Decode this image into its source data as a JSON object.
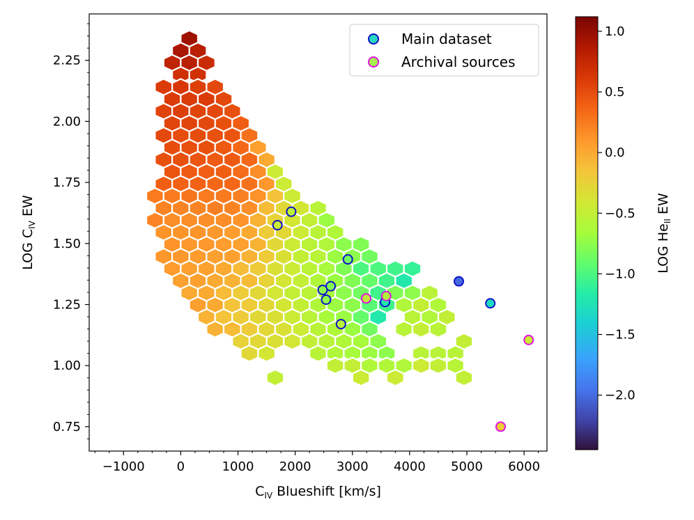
{
  "chart_data": {
    "type": "scatter",
    "title": "",
    "xlabel": {
      "main": "C",
      "sub": "IV",
      "rest": " Blueshift [km/s]"
    },
    "ylabel": {
      "main": "LOG C",
      "sub": "IV",
      "rest": " EW"
    },
    "colorbar_label": {
      "main": "LOG He",
      "sub": "II",
      "rest": " EW"
    },
    "xlim": [
      -1600,
      6400
    ],
    "ylim": [
      0.65,
      2.44
    ],
    "clim": [
      -2.45,
      1.12
    ],
    "xticks": [
      -1000,
      0,
      1000,
      2000,
      3000,
      4000,
      5000,
      6000
    ],
    "xtick_labels": [
      "−1000",
      "0",
      "1000",
      "2000",
      "3000",
      "4000",
      "5000",
      "6000"
    ],
    "yticks": [
      0.75,
      1.0,
      1.25,
      1.5,
      1.75,
      2.0,
      2.25
    ],
    "ytick_labels": [
      "0.75",
      "1.00",
      "1.25",
      "1.50",
      "1.75",
      "2.00",
      "2.25"
    ],
    "cticks": [
      1.0,
      0.5,
      0.0,
      -0.5,
      -1.0,
      -1.5,
      -2.0
    ],
    "ctick_labels": [
      "1.0",
      "0.5",
      "0.0",
      "−0.5",
      "−1.0",
      "−1.5",
      "−2.0"
    ],
    "hex_grid": {
      "x0": 0,
      "y0": 1.0,
      "dx": 300,
      "dy": 0.0496
    },
    "hexbins_rows": [
      {
        "row": 27,
        "cells": [
          [
            1,
            0.95
          ]
        ]
      },
      {
        "row": 26,
        "cells": [
          [
            0,
            0.9
          ],
          [
            2,
            0.82
          ]
        ]
      },
      {
        "row": 25,
        "cells": [
          [
            -1,
            0.78
          ],
          [
            1,
            0.82
          ],
          [
            3,
            0.72
          ]
        ]
      },
      {
        "row": 24,
        "cells": [
          [
            0,
            0.68
          ],
          [
            2,
            0.68
          ]
        ]
      },
      {
        "row": 23,
        "cells": [
          [
            -2,
            0.6
          ],
          [
            0,
            0.62
          ],
          [
            2,
            0.58
          ],
          [
            4,
            0.52
          ]
        ]
      },
      {
        "row": 22,
        "cells": [
          [
            -1,
            0.6
          ],
          [
            1,
            0.6
          ],
          [
            3,
            0.6
          ],
          [
            5,
            0.52
          ]
        ]
      },
      {
        "row": 21,
        "cells": [
          [
            -2,
            0.55
          ],
          [
            0,
            0.58
          ],
          [
            2,
            0.55
          ],
          [
            4,
            0.52
          ],
          [
            6,
            0.48
          ]
        ]
      },
      {
        "row": 20,
        "cells": [
          [
            -1,
            0.55
          ],
          [
            1,
            0.55
          ],
          [
            3,
            0.52
          ],
          [
            5,
            0.48
          ],
          [
            7,
            0.4
          ]
        ]
      },
      {
        "row": 19,
        "cells": [
          [
            -2,
            0.52
          ],
          [
            0,
            0.5
          ],
          [
            2,
            0.5
          ],
          [
            4,
            0.48
          ],
          [
            6,
            0.45
          ],
          [
            8,
            0.3
          ]
        ]
      },
      {
        "row": 18,
        "cells": [
          [
            -1,
            0.5
          ],
          [
            1,
            0.48
          ],
          [
            3,
            0.48
          ],
          [
            5,
            0.42
          ],
          [
            7,
            0.35
          ],
          [
            9,
            0.05
          ]
        ]
      },
      {
        "row": 17,
        "cells": [
          [
            -2,
            0.48
          ],
          [
            0,
            0.48
          ],
          [
            2,
            0.45
          ],
          [
            4,
            0.42
          ],
          [
            6,
            0.42
          ],
          [
            8,
            0.35
          ],
          [
            10,
            0.0
          ]
        ]
      },
      {
        "row": 16,
        "cells": [
          [
            -1,
            0.45
          ],
          [
            1,
            0.42
          ],
          [
            3,
            0.4
          ],
          [
            5,
            0.4
          ],
          [
            7,
            0.32
          ],
          [
            9,
            0.15
          ],
          [
            11,
            -0.45
          ]
        ]
      },
      {
        "row": 15,
        "cells": [
          [
            -2,
            0.4
          ],
          [
            0,
            0.38
          ],
          [
            2,
            0.38
          ],
          [
            4,
            0.35
          ],
          [
            6,
            0.35
          ],
          [
            8,
            0.3
          ],
          [
            10,
            0.1
          ],
          [
            12,
            -0.45
          ]
        ]
      },
      {
        "row": 14,
        "cells": [
          [
            -3,
            0.25
          ],
          [
            -1,
            0.25
          ],
          [
            1,
            0.28
          ],
          [
            3,
            0.25
          ],
          [
            5,
            0.25
          ],
          [
            7,
            0.22
          ],
          [
            9,
            0.12
          ],
          [
            11,
            -0.15
          ],
          [
            13,
            -0.45
          ]
        ]
      },
      {
        "row": 13,
        "cells": [
          [
            -2,
            0.2
          ],
          [
            0,
            0.2
          ],
          [
            2,
            0.2
          ],
          [
            4,
            0.22
          ],
          [
            6,
            0.2
          ],
          [
            8,
            0.15
          ],
          [
            10,
            -0.1
          ],
          [
            12,
            -0.3
          ],
          [
            14,
            -0.4
          ],
          [
            16,
            -0.55
          ]
        ]
      },
      {
        "row": 12,
        "cells": [
          [
            -3,
            0.2
          ],
          [
            -1,
            0.15
          ],
          [
            1,
            0.15
          ],
          [
            3,
            0.15
          ],
          [
            5,
            0.15
          ],
          [
            7,
            0.12
          ],
          [
            9,
            -0.05
          ],
          [
            11,
            -0.25
          ],
          [
            13,
            -0.4
          ],
          [
            15,
            -0.5
          ],
          [
            17,
            -0.7
          ]
        ]
      },
      {
        "row": 11,
        "cells": [
          [
            -2,
            0.12
          ],
          [
            0,
            0.12
          ],
          [
            2,
            0.12
          ],
          [
            4,
            0.1
          ],
          [
            6,
            0.08
          ],
          [
            8,
            0.0
          ],
          [
            10,
            -0.2
          ],
          [
            12,
            -0.3
          ],
          [
            14,
            -0.45
          ],
          [
            16,
            -0.55
          ],
          [
            18,
            -0.6
          ]
        ]
      },
      {
        "row": 10,
        "cells": [
          [
            -1,
            0.12
          ],
          [
            1,
            0.1
          ],
          [
            3,
            0.1
          ],
          [
            5,
            0.08
          ],
          [
            7,
            0.05
          ],
          [
            9,
            -0.05
          ],
          [
            11,
            -0.3
          ],
          [
            13,
            -0.45
          ],
          [
            15,
            -0.55
          ],
          [
            17,
            -0.6
          ],
          [
            19,
            -0.75
          ],
          [
            21,
            -0.8
          ]
        ]
      },
      {
        "row": 9,
        "cells": [
          [
            -2,
            0.1
          ],
          [
            0,
            0.1
          ],
          [
            2,
            0.08
          ],
          [
            4,
            0.05
          ],
          [
            6,
            0.05
          ],
          [
            8,
            -0.05
          ],
          [
            10,
            -0.2
          ],
          [
            12,
            -0.35
          ],
          [
            14,
            -0.5
          ],
          [
            16,
            -0.55
          ],
          [
            18,
            -0.7
          ],
          [
            20,
            -0.75
          ],
          [
            22,
            -0.85
          ]
        ]
      },
      {
        "row": 8,
        "cells": [
          [
            -1,
            0.08
          ],
          [
            1,
            0.05
          ],
          [
            3,
            0.05
          ],
          [
            5,
            0.0
          ],
          [
            7,
            -0.1
          ],
          [
            9,
            -0.2
          ],
          [
            11,
            -0.35
          ],
          [
            13,
            -0.45
          ],
          [
            15,
            -0.55
          ],
          [
            17,
            -0.65
          ],
          [
            19,
            -0.8
          ],
          [
            21,
            -1.0
          ],
          [
            23,
            -1.0
          ],
          [
            25,
            -1.05
          ],
          [
            27,
            -1.1
          ]
        ]
      },
      {
        "row": 7,
        "cells": [
          [
            0,
            0.05
          ],
          [
            2,
            0.05
          ],
          [
            4,
            0.0
          ],
          [
            6,
            -0.05
          ],
          [
            8,
            -0.1
          ],
          [
            10,
            -0.25
          ],
          [
            12,
            -0.4
          ],
          [
            14,
            -0.5
          ],
          [
            16,
            -0.6
          ],
          [
            18,
            -0.7
          ],
          [
            20,
            -0.8
          ],
          [
            22,
            -0.9
          ],
          [
            24,
            -1.05
          ],
          [
            26,
            -1.2
          ]
        ]
      },
      {
        "row": 6,
        "cells": [
          [
            1,
            0.0
          ],
          [
            3,
            0.0
          ],
          [
            5,
            -0.1
          ],
          [
            7,
            -0.2
          ],
          [
            9,
            -0.3
          ],
          [
            11,
            -0.4
          ],
          [
            13,
            -0.5
          ],
          [
            15,
            -0.55
          ],
          [
            17,
            -0.65
          ],
          [
            19,
            -0.75
          ],
          [
            21,
            -0.85
          ],
          [
            23,
            -1.05
          ],
          [
            25,
            -0.8
          ],
          [
            27,
            -0.75
          ],
          [
            29,
            -0.55
          ]
        ]
      },
      {
        "row": 5,
        "cells": [
          [
            2,
            0.05
          ],
          [
            4,
            0.0
          ],
          [
            6,
            -0.15
          ],
          [
            8,
            -0.2
          ],
          [
            10,
            -0.3
          ],
          [
            12,
            -0.4
          ],
          [
            14,
            -0.5
          ],
          [
            16,
            -0.6
          ],
          [
            18,
            -0.7
          ],
          [
            20,
            -0.75
          ],
          [
            22,
            -0.95
          ],
          [
            24,
            -1.05
          ],
          [
            26,
            -0.6
          ],
          [
            28,
            -0.5
          ],
          [
            30,
            -0.6
          ]
        ]
      },
      {
        "row": 4,
        "cells": [
          [
            3,
            -0.05
          ],
          [
            5,
            -0.15
          ],
          [
            7,
            -0.2
          ],
          [
            9,
            -0.3
          ],
          [
            11,
            -0.35
          ],
          [
            13,
            -0.45
          ],
          [
            15,
            -0.55
          ],
          [
            17,
            -0.65
          ],
          [
            19,
            -0.7
          ],
          [
            21,
            -0.9
          ],
          [
            23,
            -1.2
          ],
          [
            27,
            -0.55
          ],
          [
            29,
            -0.6
          ],
          [
            31,
            -0.5
          ]
        ]
      },
      {
        "row": 3,
        "cells": [
          [
            4,
            -0.05
          ],
          [
            6,
            -0.1
          ],
          [
            8,
            -0.2
          ],
          [
            10,
            -0.3
          ],
          [
            12,
            -0.35
          ],
          [
            14,
            -0.45
          ],
          [
            16,
            -0.55
          ],
          [
            18,
            -0.6
          ],
          [
            20,
            -0.7
          ],
          [
            22,
            -0.85
          ],
          [
            26,
            -0.55
          ],
          [
            28,
            -0.5
          ],
          [
            30,
            -0.55
          ]
        ]
      },
      {
        "row": 2,
        "cells": [
          [
            7,
            -0.25
          ],
          [
            9,
            -0.3
          ],
          [
            11,
            -0.35
          ],
          [
            13,
            -0.4
          ],
          [
            15,
            -0.5
          ],
          [
            17,
            -0.55
          ],
          [
            19,
            -0.6
          ],
          [
            21,
            -0.65
          ],
          [
            23,
            -0.75
          ],
          [
            33,
            -0.5
          ]
        ]
      },
      {
        "row": 1,
        "cells": [
          [
            8,
            -0.3
          ],
          [
            10,
            -0.4
          ],
          [
            16,
            -0.55
          ],
          [
            18,
            -0.6
          ],
          [
            20,
            -0.65
          ],
          [
            22,
            -0.7
          ],
          [
            24,
            -0.75
          ],
          [
            28,
            -0.55
          ],
          [
            30,
            -0.55
          ],
          [
            32,
            -0.55
          ]
        ]
      },
      {
        "row": 0,
        "cells": [
          [
            18,
            -0.5
          ],
          [
            20,
            -0.5
          ],
          [
            22,
            -0.6
          ],
          [
            24,
            -0.6
          ],
          [
            26,
            -0.6
          ],
          [
            28,
            -0.45
          ],
          [
            30,
            -0.5
          ],
          [
            32,
            -0.55
          ]
        ]
      },
      {
        "row": -1,
        "cells": [
          [
            11,
            -0.5
          ],
          [
            21,
            -0.45
          ],
          [
            25,
            -0.45
          ],
          [
            33,
            -0.5
          ]
        ]
      }
    ],
    "series": [
      {
        "name": "Main dataset",
        "edgecolor": "#1010c8",
        "points": [
          {
            "x": 1690,
            "y": 1.575,
            "c": -0.45
          },
          {
            "x": 1930,
            "y": 1.63,
            "c": -0.55
          },
          {
            "x": 2920,
            "y": 1.435,
            "c": -0.85
          },
          {
            "x": 2480,
            "y": 1.31,
            "c": -0.75
          },
          {
            "x": 2620,
            "y": 1.325,
            "c": -0.8
          },
          {
            "x": 2540,
            "y": 1.27,
            "c": -0.75
          },
          {
            "x": 2800,
            "y": 1.17,
            "c": -0.55
          },
          {
            "x": 3570,
            "y": 1.26,
            "c": -1.2
          },
          {
            "x": 4860,
            "y": 1.345,
            "c": -2.0
          },
          {
            "x": 5410,
            "y": 1.255,
            "c": -1.3
          }
        ]
      },
      {
        "name": "Archival sources",
        "edgecolor": "#e010e0",
        "points": [
          {
            "x": 3240,
            "y": 1.275,
            "c": -0.5
          },
          {
            "x": 3590,
            "y": 1.285,
            "c": -0.6
          },
          {
            "x": 5590,
            "y": 0.75,
            "c": -0.2
          },
          {
            "x": 6080,
            "y": 1.105,
            "c": -0.45
          }
        ]
      }
    ],
    "legend": {
      "position": "top-right",
      "entries": [
        {
          "label": "Main dataset",
          "face": "#2ad6c0",
          "edge": "#1010c8"
        },
        {
          "label": "Archival sources",
          "face": "#a8f050",
          "edge": "#e010e0"
        }
      ]
    }
  }
}
